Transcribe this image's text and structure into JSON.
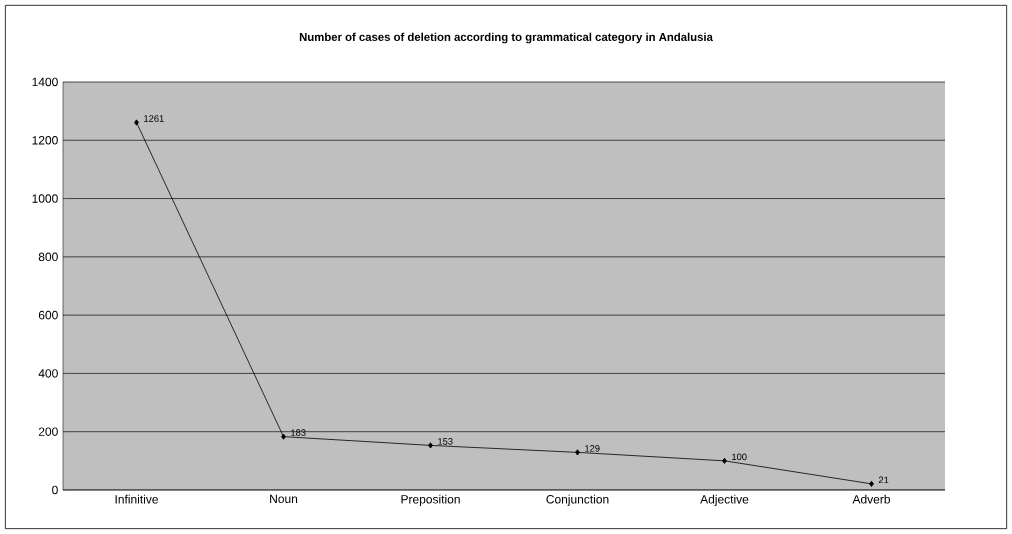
{
  "chart_data": {
    "type": "line",
    "title": "Number of cases of deletion according to grammatical category in Andalusia",
    "categories": [
      "Infinitive",
      "Noun",
      "Preposition",
      "Conjunction",
      "Adjective",
      "Adverb"
    ],
    "values": [
      1261,
      183,
      153,
      129,
      100,
      21
    ],
    "color": "#000000",
    "ylim": [
      0,
      1400
    ],
    "yticks": [
      0,
      200,
      400,
      600,
      800,
      1000,
      1200,
      1400
    ],
    "grid": "y",
    "marker": "diamond",
    "line_style": "solid",
    "data_labels": true
  }
}
